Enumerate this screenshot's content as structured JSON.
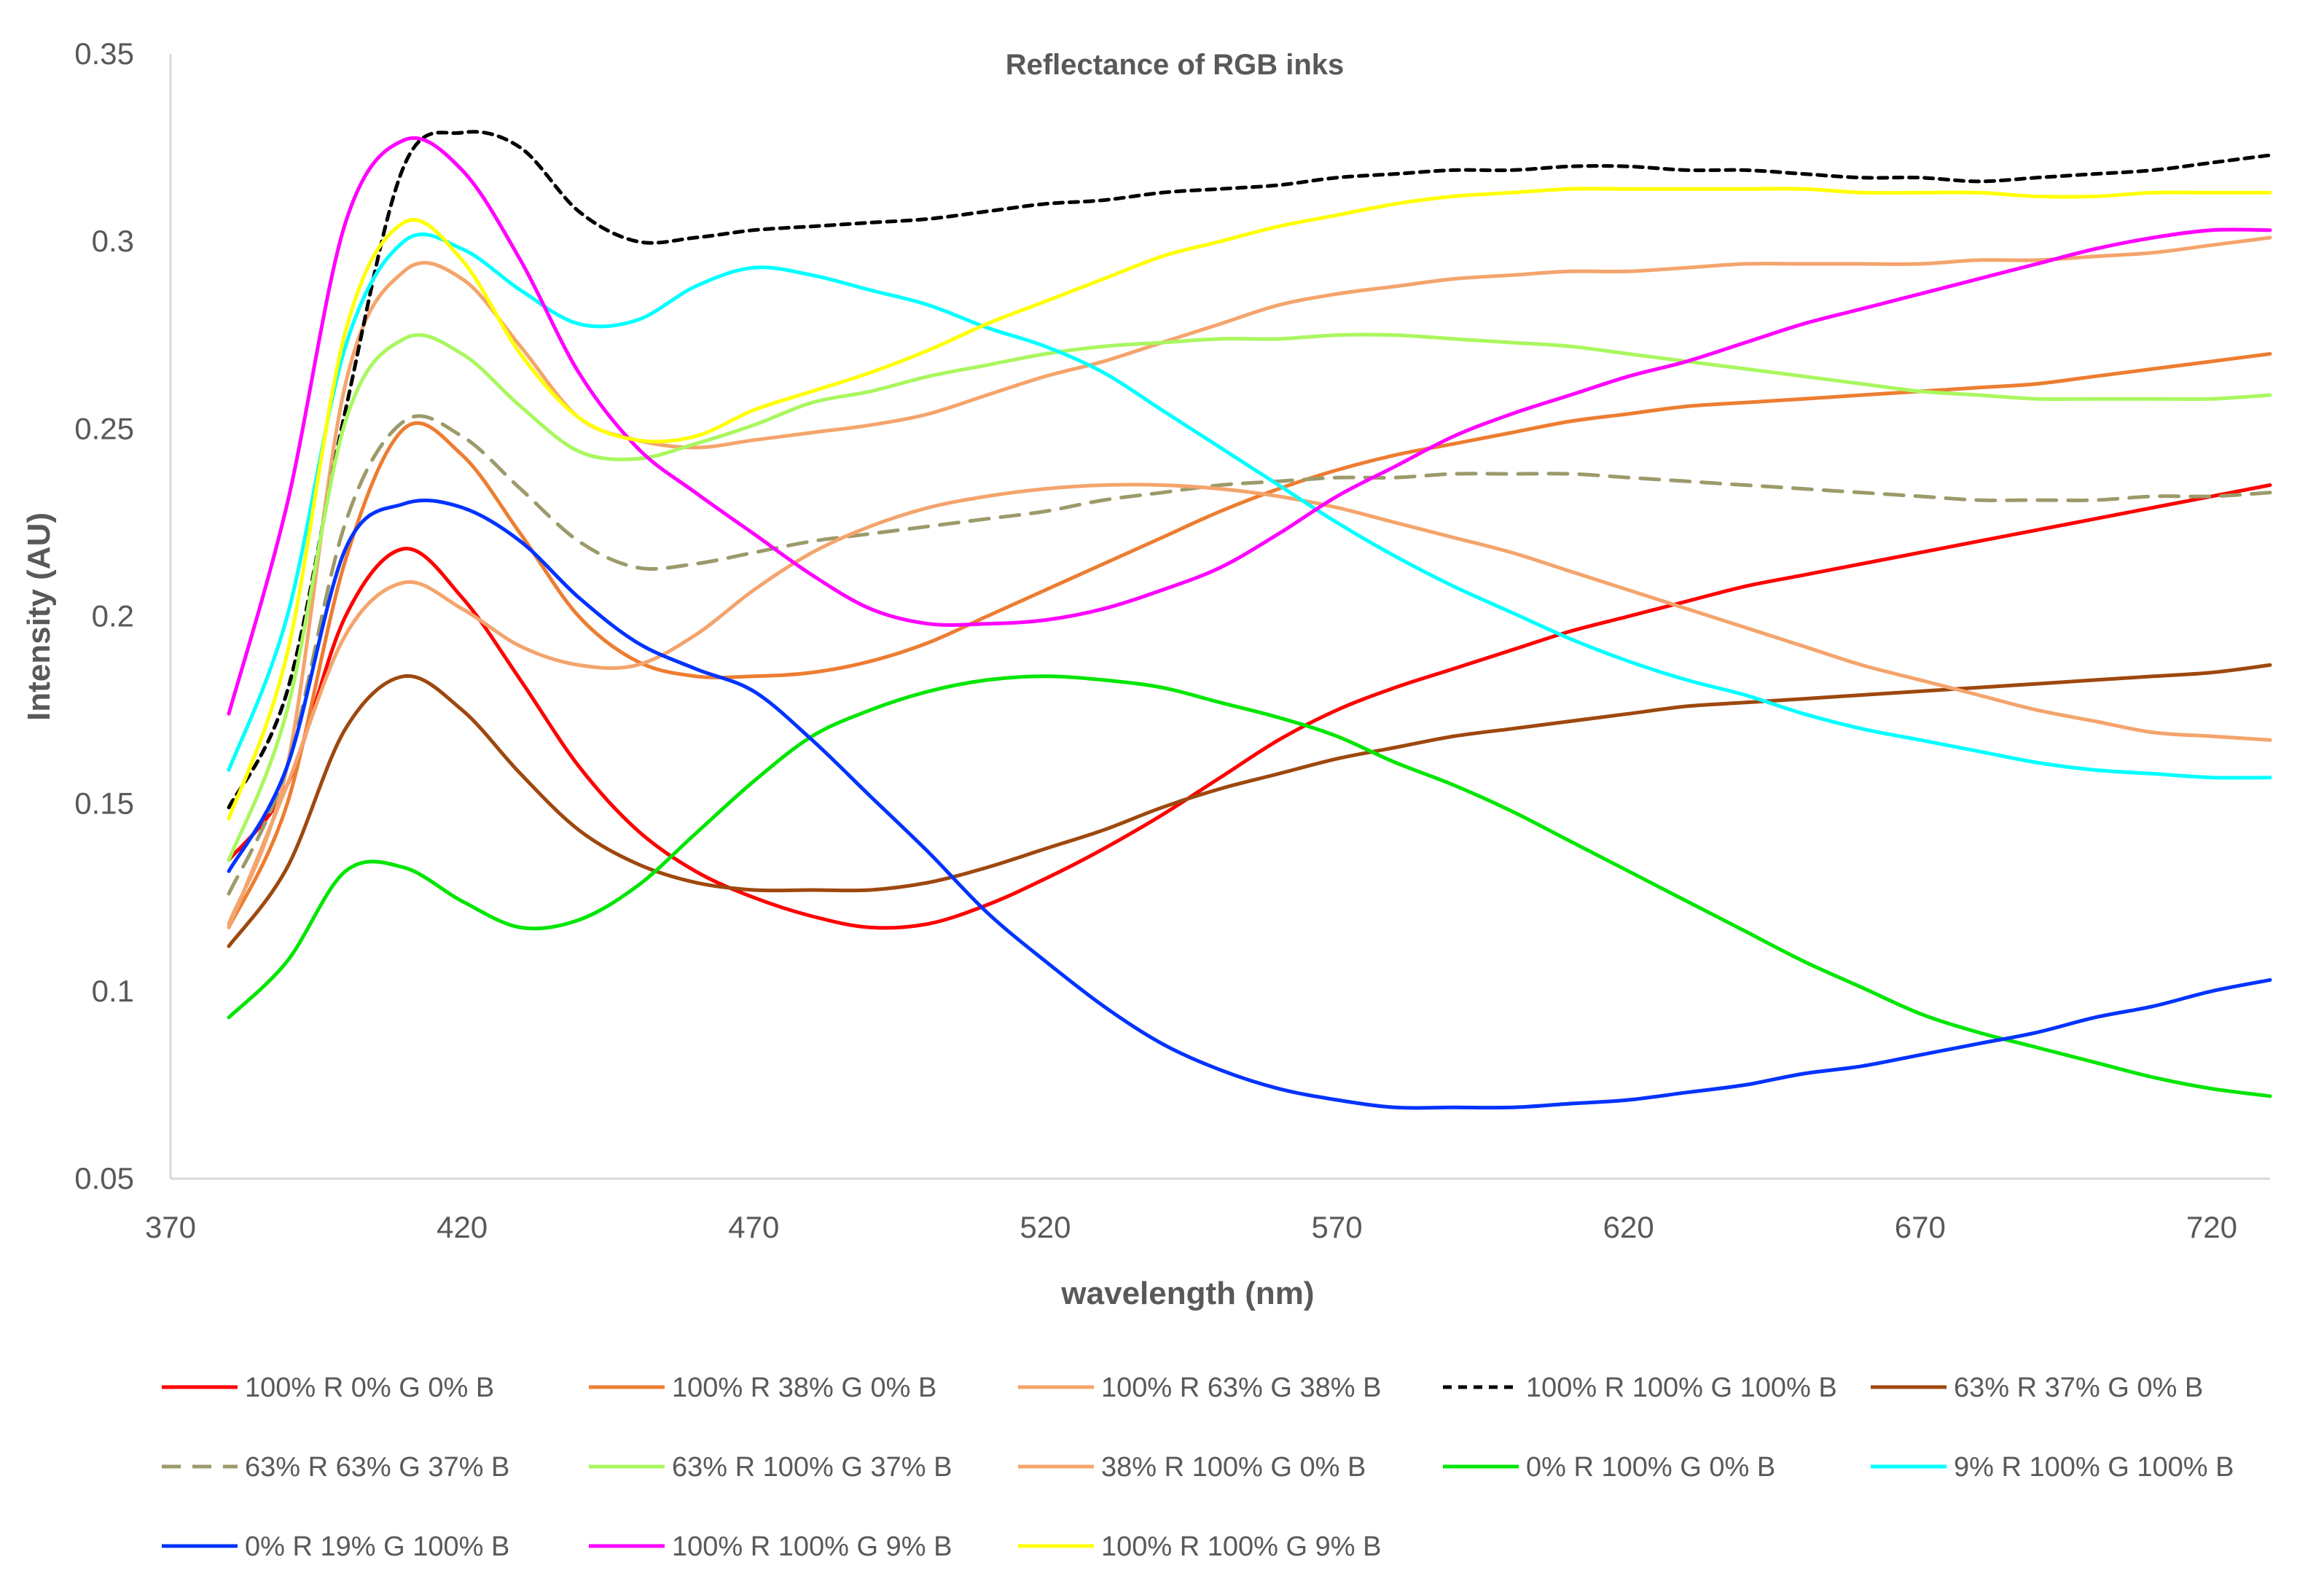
{
  "chart_data": {
    "type": "line",
    "title": "Reflectance of RGB inks",
    "xlabel": "wavelength (nm)",
    "ylabel": "Intensity (AU)",
    "xlim": [
      370,
      730
    ],
    "ylim": [
      0.05,
      0.35
    ],
    "xticks": [
      "370",
      "420",
      "470",
      "520",
      "570",
      "620",
      "670",
      "720"
    ],
    "xtick_values": [
      370,
      420,
      470,
      520,
      570,
      620,
      670,
      720
    ],
    "yticks": [
      "0.05",
      "0.1",
      "0.15",
      "0.2",
      "0.25",
      "0.3",
      "0.35"
    ],
    "ytick_values": [
      0.05,
      0.1,
      0.15,
      0.2,
      0.25,
      0.3,
      0.35
    ],
    "grid": false,
    "legend_position": "bottom",
    "x": [
      380,
      390,
      400,
      410,
      420,
      430,
      440,
      450,
      460,
      470,
      480,
      490,
      500,
      510,
      520,
      530,
      540,
      550,
      560,
      570,
      580,
      590,
      600,
      610,
      620,
      630,
      640,
      650,
      660,
      670,
      680,
      690,
      700,
      710,
      720,
      730
    ],
    "series": [
      {
        "name": "100% R 0% G 0% B",
        "color": "#ff0000",
        "dash": "solid",
        "values": [
          0.135,
          0.155,
          0.2,
          0.218,
          0.205,
          0.183,
          0.16,
          0.143,
          0.132,
          0.125,
          0.12,
          0.117,
          0.118,
          0.123,
          0.13,
          0.138,
          0.147,
          0.157,
          0.167,
          0.175,
          0.181,
          0.186,
          0.191,
          0.196,
          0.2,
          0.204,
          0.208,
          0.211,
          0.214,
          0.217,
          0.22,
          0.223,
          0.226,
          0.229,
          0.232,
          0.235
        ]
      },
      {
        "name": "100% R 38% G 0% B",
        "color": "#ed7d31",
        "dash": "solid",
        "values": [
          0.117,
          0.15,
          0.215,
          0.25,
          0.243,
          0.222,
          0.2,
          0.188,
          0.184,
          0.184,
          0.185,
          0.188,
          0.193,
          0.2,
          0.207,
          0.214,
          0.221,
          0.228,
          0.234,
          0.239,
          0.243,
          0.246,
          0.249,
          0.252,
          0.254,
          0.256,
          0.257,
          0.258,
          0.259,
          0.26,
          0.261,
          0.262,
          0.264,
          0.266,
          0.268,
          0.27
        ]
      },
      {
        "name": "100% R 63% G 38% B",
        "color": "#f4a46c",
        "dash": "solid",
        "values": [
          0.118,
          0.16,
          0.262,
          0.292,
          0.29,
          0.272,
          0.253,
          0.247,
          0.245,
          0.247,
          0.249,
          0.251,
          0.254,
          0.259,
          0.264,
          0.268,
          0.273,
          0.278,
          0.283,
          0.286,
          0.288,
          0.29,
          0.291,
          0.292,
          0.292,
          0.293,
          0.294,
          0.294,
          0.294,
          0.294,
          0.295,
          0.295,
          0.296,
          0.297,
          0.299,
          0.301
        ]
      },
      {
        "name": "100% R 100% G 100% B",
        "color": "#000000",
        "dash": "dash",
        "values": [
          0.149,
          0.18,
          0.255,
          0.32,
          0.329,
          0.325,
          0.308,
          0.3,
          0.301,
          0.303,
          0.304,
          0.305,
          0.306,
          0.308,
          0.31,
          0.311,
          0.313,
          0.314,
          0.315,
          0.317,
          0.318,
          0.319,
          0.319,
          0.32,
          0.32,
          0.319,
          0.319,
          0.318,
          0.317,
          0.317,
          0.316,
          0.317,
          0.318,
          0.319,
          0.321,
          0.323
        ]
      },
      {
        "name": "63% R 37% G 0% B",
        "color": "#9e480e",
        "dash": "solid",
        "values": [
          0.112,
          0.133,
          0.17,
          0.184,
          0.175,
          0.158,
          0.143,
          0.134,
          0.129,
          0.127,
          0.127,
          0.127,
          0.129,
          0.133,
          0.138,
          0.143,
          0.149,
          0.154,
          0.158,
          0.162,
          0.165,
          0.168,
          0.17,
          0.172,
          0.174,
          0.176,
          0.177,
          0.178,
          0.179,
          0.18,
          0.181,
          0.182,
          0.183,
          0.184,
          0.185,
          0.187
        ]
      },
      {
        "name": "63% R 63% G 37% B",
        "color": "#9c9a6a",
        "dash": "dash",
        "values": [
          0.126,
          0.16,
          0.225,
          0.252,
          0.248,
          0.234,
          0.22,
          0.213,
          0.214,
          0.217,
          0.22,
          0.222,
          0.224,
          0.226,
          0.228,
          0.231,
          0.233,
          0.235,
          0.236,
          0.237,
          0.237,
          0.238,
          0.238,
          0.238,
          0.237,
          0.236,
          0.235,
          0.234,
          0.233,
          0.232,
          0.231,
          0.231,
          0.231,
          0.232,
          0.232,
          0.233
        ]
      },
      {
        "name": "63% R 100% G 37% B",
        "color": "#a9f75f",
        "dash": "solid",
        "values": [
          0.135,
          0.175,
          0.252,
          0.274,
          0.27,
          0.256,
          0.244,
          0.242,
          0.246,
          0.251,
          0.257,
          0.26,
          0.264,
          0.267,
          0.27,
          0.272,
          0.273,
          0.274,
          0.274,
          0.275,
          0.275,
          0.274,
          0.273,
          0.272,
          0.27,
          0.268,
          0.266,
          0.264,
          0.262,
          0.26,
          0.259,
          0.258,
          0.258,
          0.258,
          0.258,
          0.259
        ]
      },
      {
        "name": "38% R 100% G 0% B",
        "color": "#f4a46c",
        "dash": "solid",
        "values": [
          0.117,
          0.155,
          0.195,
          0.209,
          0.202,
          0.192,
          0.187,
          0.187,
          0.195,
          0.207,
          0.217,
          0.224,
          0.229,
          0.232,
          0.234,
          0.235,
          0.235,
          0.234,
          0.232,
          0.229,
          0.225,
          0.221,
          0.217,
          0.212,
          0.207,
          0.202,
          0.197,
          0.192,
          0.187,
          0.183,
          0.179,
          0.175,
          0.172,
          0.169,
          0.168,
          0.167
        ]
      },
      {
        "name": "0% R 100% G 0% B",
        "color": "#00e600",
        "dash": "solid",
        "values": [
          0.093,
          0.108,
          0.132,
          0.133,
          0.124,
          0.117,
          0.119,
          0.128,
          0.142,
          0.156,
          0.168,
          0.175,
          0.18,
          0.183,
          0.184,
          0.183,
          0.181,
          0.177,
          0.173,
          0.168,
          0.161,
          0.155,
          0.148,
          0.14,
          0.132,
          0.124,
          0.116,
          0.108,
          0.101,
          0.094,
          0.089,
          0.085,
          0.081,
          0.077,
          0.074,
          0.072
        ]
      },
      {
        "name": "9% R 100% G 100% B",
        "color": "#00ffff",
        "dash": "solid",
        "values": [
          0.159,
          0.2,
          0.272,
          0.3,
          0.298,
          0.287,
          0.278,
          0.279,
          0.288,
          0.293,
          0.291,
          0.287,
          0.283,
          0.277,
          0.272,
          0.265,
          0.255,
          0.245,
          0.235,
          0.225,
          0.216,
          0.208,
          0.201,
          0.194,
          0.188,
          0.183,
          0.179,
          0.174,
          0.17,
          0.167,
          0.164,
          0.161,
          0.159,
          0.158,
          0.157,
          0.157
        ]
      },
      {
        "name": "0% R 19% G 100% B",
        "color": "#0033ff",
        "dash": "solid",
        "values": [
          0.132,
          0.16,
          0.218,
          0.23,
          0.229,
          0.22,
          0.205,
          0.193,
          0.186,
          0.18,
          0.167,
          0.152,
          0.137,
          0.121,
          0.108,
          0.096,
          0.086,
          0.079,
          0.074,
          0.071,
          0.069,
          0.069,
          0.069,
          0.07,
          0.071,
          0.073,
          0.075,
          0.078,
          0.08,
          0.083,
          0.086,
          0.089,
          0.093,
          0.096,
          0.1,
          0.103
        ]
      },
      {
        "name": "100% R 100% G 9% B",
        "color": "#ff00ff",
        "dash": "solid",
        "values": [
          0.174,
          0.23,
          0.305,
          0.327,
          0.319,
          0.295,
          0.265,
          0.245,
          0.233,
          0.222,
          0.211,
          0.202,
          0.198,
          0.198,
          0.199,
          0.202,
          0.207,
          0.213,
          0.222,
          0.232,
          0.24,
          0.248,
          0.254,
          0.259,
          0.264,
          0.268,
          0.273,
          0.278,
          0.282,
          0.286,
          0.29,
          0.294,
          0.298,
          0.301,
          0.303,
          0.303
        ]
      },
      {
        "name": "100% R 100% G 9% B",
        "color": "#ffff00",
        "dash": "solid",
        "values": [
          0.146,
          0.19,
          0.276,
          0.305,
          0.295,
          0.27,
          0.253,
          0.247,
          0.248,
          0.255,
          0.26,
          0.265,
          0.271,
          0.278,
          0.284,
          0.29,
          0.296,
          0.3,
          0.304,
          0.307,
          0.31,
          0.312,
          0.313,
          0.314,
          0.314,
          0.314,
          0.314,
          0.314,
          0.313,
          0.313,
          0.313,
          0.312,
          0.312,
          0.313,
          0.313,
          0.313
        ]
      }
    ]
  }
}
